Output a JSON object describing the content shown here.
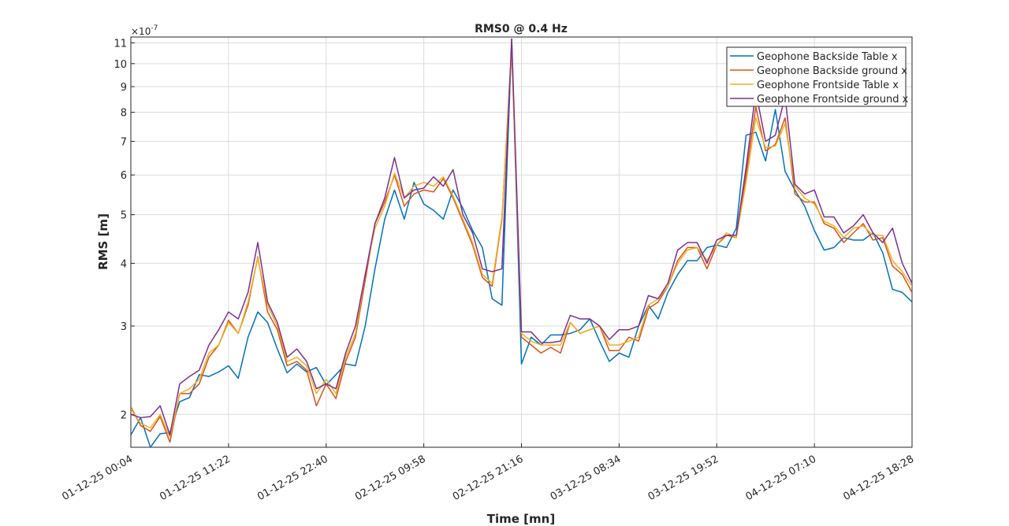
{
  "chart_data": {
    "type": "line",
    "title": "RMS0 @ 0.4 Hz",
    "x_label": "Time [mn]",
    "y_label": "RMS [m]",
    "y_multiplier": "×10",
    "y_exponent": "-7",
    "log_y": true,
    "grid": true,
    "legend": "northeast",
    "x": [
      0,
      1,
      2,
      3,
      4,
      5,
      6,
      7,
      8,
      9,
      10,
      11,
      12,
      13,
      14,
      15,
      16,
      17,
      18,
      19,
      20,
      21,
      22,
      23,
      24,
      25,
      26,
      27,
      28,
      29,
      30,
      31,
      32,
      33,
      34,
      35,
      36,
      37,
      38,
      39,
      40,
      41,
      42,
      43,
      44,
      45,
      46,
      47,
      48,
      49,
      50,
      51,
      52,
      53,
      54,
      55,
      56,
      57,
      58,
      59,
      60,
      61,
      62,
      63,
      64,
      65,
      66,
      67,
      68,
      69,
      70,
      71,
      72,
      73,
      74,
      75,
      76,
      77,
      78,
      79,
      80
    ],
    "xlim": [
      0,
      80
    ],
    "xticks": [
      {
        "value": 0,
        "label": "01-12-25 00:04"
      },
      {
        "value": 10,
        "label": "01-12-25 11:22"
      },
      {
        "value": 20,
        "label": "01-12-25 22:40"
      },
      {
        "value": 30,
        "label": "02-12-25 09:58"
      },
      {
        "value": 40,
        "label": "02-12-25 21:16"
      },
      {
        "value": 50,
        "label": "03-12-25 08:34"
      },
      {
        "value": 60,
        "label": "03-12-25 19:52"
      },
      {
        "value": 70,
        "label": "04-12-25 07:10"
      },
      {
        "value": 80,
        "label": "04-12-25 18:28"
      }
    ],
    "ylim": [
      1.72,
      11.3
    ],
    "yticks": [
      2,
      3,
      4,
      5,
      6,
      7,
      8,
      9,
      10,
      11
    ],
    "series": [
      {
        "name": "Geophone Backside Table x",
        "color": "#0072BD",
        "values": [
          1.82,
          1.97,
          1.72,
          1.83,
          1.84,
          2.12,
          2.16,
          2.4,
          2.38,
          2.43,
          2.5,
          2.36,
          2.85,
          3.2,
          3.05,
          2.7,
          2.42,
          2.52,
          2.43,
          2.48,
          2.29,
          2.4,
          2.52,
          2.5,
          3.0,
          3.9,
          4.9,
          5.6,
          4.9,
          5.8,
          5.25,
          5.1,
          4.9,
          5.6,
          5.15,
          4.65,
          4.3,
          3.4,
          3.3,
          11.2,
          2.52,
          2.85,
          2.75,
          2.88,
          2.88,
          2.9,
          2.95,
          3.1,
          2.8,
          2.55,
          2.65,
          2.6,
          3.0,
          3.3,
          3.1,
          3.5,
          3.8,
          4.05,
          4.05,
          4.3,
          4.35,
          4.3,
          4.7,
          7.2,
          7.3,
          6.4,
          8.1,
          6.1,
          5.6,
          5.2,
          4.65,
          4.25,
          4.3,
          4.5,
          4.45,
          4.45,
          4.6,
          4.2,
          3.55,
          3.5,
          3.35
        ]
      },
      {
        "name": "Geophone Backside ground x",
        "color": "#D95319",
        "values": [
          2.07,
          1.9,
          1.85,
          1.98,
          1.76,
          2.2,
          2.2,
          2.3,
          2.6,
          2.75,
          3.08,
          2.9,
          3.3,
          4.12,
          3.2,
          2.95,
          2.5,
          2.55,
          2.45,
          2.08,
          2.3,
          2.15,
          2.55,
          2.85,
          3.7,
          4.8,
          5.3,
          6.0,
          5.2,
          5.5,
          5.6,
          5.55,
          5.9,
          5.4,
          4.85,
          4.35,
          3.75,
          3.6,
          4.9,
          10.8,
          2.85,
          2.75,
          2.65,
          2.72,
          2.65,
          3.05,
          2.9,
          2.95,
          3.0,
          2.68,
          2.68,
          2.85,
          2.8,
          3.25,
          3.35,
          3.6,
          4.05,
          4.3,
          4.3,
          3.9,
          4.35,
          4.55,
          4.5,
          6.0,
          8.2,
          6.7,
          6.9,
          7.8,
          5.5,
          5.3,
          5.3,
          4.8,
          4.7,
          4.4,
          4.6,
          4.8,
          4.45,
          4.5,
          3.95,
          3.8,
          3.5
        ]
      },
      {
        "name": "Geophone Frontside Table x",
        "color": "#EDB120",
        "values": [
          2.05,
          1.92,
          1.88,
          2.0,
          1.8,
          2.2,
          2.25,
          2.35,
          2.65,
          2.75,
          3.05,
          2.9,
          3.35,
          4.1,
          3.3,
          3.0,
          2.55,
          2.6,
          2.5,
          2.2,
          2.35,
          2.2,
          2.6,
          2.9,
          3.8,
          4.7,
          5.2,
          6.05,
          5.4,
          5.7,
          5.8,
          5.7,
          5.95,
          5.45,
          4.9,
          4.4,
          3.8,
          3.65,
          4.95,
          10.5,
          2.9,
          2.8,
          2.75,
          2.75,
          2.75,
          3.05,
          2.9,
          2.95,
          3.0,
          2.75,
          2.75,
          2.8,
          2.85,
          3.3,
          3.4,
          3.6,
          4.0,
          4.25,
          4.3,
          4.05,
          4.35,
          4.6,
          4.5,
          5.8,
          7.8,
          6.8,
          6.85,
          7.6,
          5.7,
          5.4,
          5.25,
          4.85,
          4.75,
          4.5,
          4.7,
          4.75,
          4.55,
          4.55,
          4.05,
          3.85,
          3.6
        ]
      },
      {
        "name": "Geophone Frontside ground x",
        "color": "#7E2F8E",
        "values": [
          2.0,
          1.97,
          1.98,
          2.08,
          1.82,
          2.3,
          2.38,
          2.45,
          2.75,
          2.95,
          3.2,
          3.1,
          3.5,
          4.4,
          3.35,
          3.05,
          2.6,
          2.7,
          2.55,
          2.25,
          2.3,
          2.25,
          2.65,
          3.0,
          3.8,
          4.8,
          5.4,
          6.5,
          5.4,
          5.6,
          5.65,
          5.95,
          5.7,
          6.15,
          5.0,
          4.6,
          3.9,
          3.85,
          3.9,
          11.2,
          2.92,
          2.92,
          2.78,
          2.78,
          2.8,
          3.15,
          3.1,
          3.1,
          3.0,
          2.82,
          2.95,
          2.95,
          3.0,
          3.45,
          3.4,
          3.65,
          4.25,
          4.4,
          4.4,
          4.0,
          4.45,
          4.55,
          4.55,
          6.2,
          8.8,
          7.0,
          7.2,
          8.6,
          5.75,
          5.5,
          5.6,
          4.95,
          4.95,
          4.6,
          4.75,
          5.0,
          4.6,
          4.4,
          4.7,
          4.0,
          3.65
        ]
      }
    ]
  }
}
